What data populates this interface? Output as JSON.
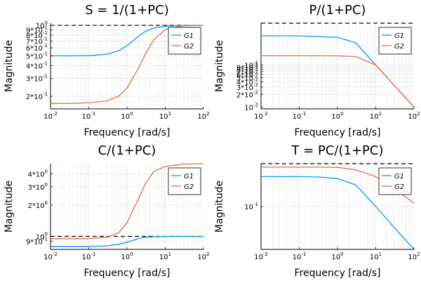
{
  "chart_data": [
    {
      "type": "line",
      "title": "S = 1/(1+PC)",
      "xlabel": "Frequency [rad/s]",
      "ylabel": "Magnitude",
      "xscale": "log",
      "yscale": "log",
      "xlim": [
        0.01,
        100
      ],
      "ylim": [
        0.15,
        1.05
      ],
      "xticks": [
        0.01,
        0.1,
        1,
        10,
        100
      ],
      "xticklabels": [
        "10^-2",
        "10^-1",
        "10^0",
        "10^1",
        "10^2"
      ],
      "yticks": [
        0.2,
        0.3,
        0.4,
        0.5,
        0.6,
        0.7,
        0.8,
        0.9,
        1.0
      ],
      "yticklabels": [
        "2*10^-1",
        "3*10^-1",
        "4*10^-1",
        "5*10^-1",
        "6*10^-1",
        "7*10^-1",
        "8*10^-1",
        "9*10^-1",
        "10^0"
      ],
      "grid": true,
      "legend": "right",
      "reference_line": 1.0,
      "x": [
        0.01,
        0.03,
        0.1,
        0.3,
        0.6,
        1,
        2,
        3,
        5,
        10,
        30,
        100
      ],
      "series": [
        {
          "name": "G1",
          "values": [
            0.5,
            0.5,
            0.502,
            0.52,
            0.56,
            0.63,
            0.78,
            0.87,
            0.94,
            0.98,
            0.995,
            1.0
          ]
        },
        {
          "name": "G2",
          "values": [
            0.17,
            0.17,
            0.172,
            0.18,
            0.2,
            0.24,
            0.38,
            0.52,
            0.72,
            0.91,
            0.99,
            1.0
          ]
        }
      ]
    },
    {
      "type": "line",
      "title": "P/(1+PC)",
      "xlabel": "Frequency [rad/s]",
      "ylabel": "Magnitude",
      "xscale": "log",
      "yscale": "log",
      "xlim": [
        0.01,
        100
      ],
      "ylim": [
        0.009,
        1.0
      ],
      "xticks": [
        0.01,
        0.1,
        1,
        10,
        100
      ],
      "xticklabels": [
        "10^-2",
        "10^-1",
        "10^0",
        "10^1",
        "10^2"
      ],
      "yticks": [
        0.01,
        0.02,
        0.03,
        0.04,
        0.05,
        0.06,
        0.07,
        0.08,
        0.09,
        0.1
      ],
      "yticklabels": [
        "10^-2",
        "2*10^-2",
        "3*10^-2",
        "4*10^-2",
        "5*10^-2",
        "6*10^-2",
        "7*10^-2",
        "8*10^-2",
        "9*10^-2",
        "10^-1"
      ],
      "grid": true,
      "legend": "right",
      "reference_line": 1.0,
      "x": [
        0.01,
        0.1,
        1,
        3,
        10,
        30,
        100
      ],
      "series": [
        {
          "name": "G1",
          "values": [
            0.5,
            0.5,
            0.46,
            0.34,
            0.1,
            0.033,
            0.01
          ]
        },
        {
          "name": "G2",
          "values": [
            0.167,
            0.167,
            0.166,
            0.16,
            0.1,
            0.033,
            0.01
          ]
        }
      ]
    },
    {
      "type": "line",
      "title": "C/(1+PC)",
      "xlabel": "Frequency [rad/s]",
      "ylabel": "Magnitude",
      "xscale": "log",
      "yscale": "log",
      "xlim": [
        0.01,
        100
      ],
      "ylim": [
        0.75,
        5.0
      ],
      "xticks": [
        0.01,
        0.1,
        1,
        10,
        100
      ],
      "xticklabels": [
        "10^-2",
        "10^-1",
        "10^0",
        "10^1",
        "10^2"
      ],
      "yticks": [
        0.9,
        1.0,
        2.0,
        3.0,
        4.0
      ],
      "yticklabels": [
        "9*10^-1",
        "10^0",
        "2*10^0",
        "3*10^0",
        "4*10^0"
      ],
      "grid": true,
      "legend": "top-right",
      "reference_line": 1.0,
      "x": [
        0.01,
        0.1,
        0.3,
        0.6,
        1,
        2,
        3,
        5,
        10,
        30,
        100
      ],
      "series": [
        {
          "name": "G1",
          "values": [
            0.8,
            0.8,
            0.81,
            0.84,
            0.88,
            0.95,
            0.98,
            0.99,
            1.0,
            1.0,
            1.0
          ]
        },
        {
          "name": "G2",
          "values": [
            0.95,
            0.95,
            0.98,
            1.08,
            1.35,
            2.3,
            3.2,
            4.2,
            4.7,
            4.95,
            5.0
          ]
        }
      ]
    },
    {
      "type": "line",
      "title": "T = PC/(1+PC)",
      "xlabel": "Frequency [rad/s]",
      "ylabel": "Magnitude",
      "xscale": "log",
      "yscale": "log",
      "xlim": [
        0.01,
        100
      ],
      "ylim": [
        0.01,
        1.0
      ],
      "xticks": [
        0.01,
        0.1,
        1,
        10,
        100
      ],
      "xticklabels": [
        "10^-2",
        "10^-1",
        "10^0",
        "10^1",
        "10^2"
      ],
      "yticks": [
        0.1
      ],
      "yticklabels": [
        "10^-1"
      ],
      "grid": true,
      "legend": "top-right",
      "reference_line": 1.0,
      "x": [
        0.01,
        0.1,
        0.3,
        1,
        3,
        10,
        30,
        100
      ],
      "series": [
        {
          "name": "G1",
          "values": [
            0.5,
            0.5,
            0.49,
            0.45,
            0.32,
            0.1,
            0.033,
            0.01
          ]
        },
        {
          "name": "G2",
          "values": [
            0.83,
            0.83,
            0.83,
            0.82,
            0.72,
            0.5,
            0.27,
            0.12
          ]
        }
      ]
    }
  ],
  "colors": {
    "G1": "#009AFA",
    "G2": "#E26F46",
    "grid": "#e6e6e6",
    "reference_line": "#000000"
  }
}
